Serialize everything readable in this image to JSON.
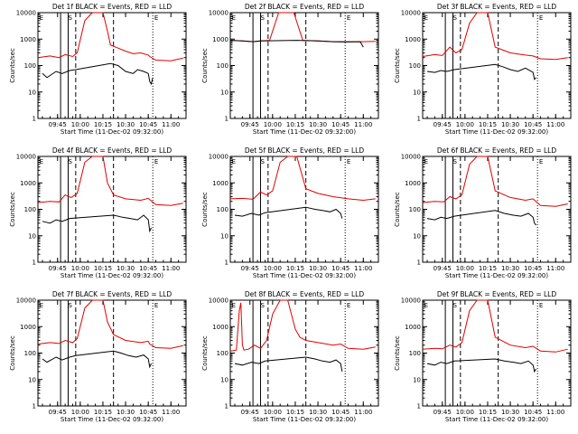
{
  "figure": {
    "x_tick_labels": [
      "09:45",
      "10:00",
      "10:15",
      "10:30",
      "10:45",
      "11:00"
    ],
    "y_tick_labels": [
      "1",
      "10",
      "100",
      "1000",
      "10000"
    ],
    "colors": {
      "events": "#000000",
      "lld": "#e00000",
      "frame": "#000000"
    }
  },
  "chart_data": [
    {
      "type": "line",
      "title": "Det 1f BLACK = Events, RED = LLD",
      "xlabel": "Start Time (11-Dec-02 09:32:00)",
      "ylabel": "Counts/sec",
      "scale": "log",
      "ylim": [
        1,
        10000
      ],
      "xlim": [
        "09:32",
        "11:10"
      ],
      "markers": [
        "E",
        "S",
        "E"
      ],
      "series": [
        {
          "name": "LLD",
          "x": [
            "09:32",
            "09:40",
            "09:46",
            "09:50",
            "09:55",
            "09:58",
            "10:03",
            "10:08",
            "10:15",
            "10:18",
            "10:20",
            "10:30",
            "10:35",
            "10:40",
            "10:45",
            "10:46",
            "10:50",
            "11:00",
            "11:08"
          ],
          "values": [
            200,
            230,
            200,
            260,
            220,
            300,
            5000,
            10000,
            10000,
            2000,
            600,
            350,
            280,
            300,
            250,
            220,
            160,
            150,
            190
          ]
        },
        {
          "name": "Events",
          "x": [
            "09:35",
            "09:38",
            "09:44",
            "09:48",
            "09:53",
            "09:57",
            "10:20",
            "10:25",
            "10:30",
            "10:35",
            "10:38",
            "10:42",
            "10:45",
            "10:46",
            "10:47",
            "10:48"
          ],
          "values": [
            50,
            35,
            60,
            50,
            65,
            70,
            120,
            100,
            60,
            50,
            70,
            60,
            50,
            25,
            20,
            35
          ]
        }
      ]
    },
    {
      "type": "line",
      "title": "Det 2f BLACK = Events, RED = LLD",
      "xlabel": "Start Time (11-Dec-02 09:32:00)",
      "ylabel": "Counts/sec",
      "scale": "log",
      "ylim": [
        1,
        10000
      ],
      "xlim": [
        "09:32",
        "11:10"
      ],
      "markers": [
        "E",
        "S",
        "E"
      ],
      "series": [
        {
          "name": "LLD",
          "x": [
            "09:32",
            "09:40",
            "09:47",
            "09:52",
            "09:58",
            "10:04",
            "10:14",
            "10:20",
            "10:30",
            "10:40",
            "10:50",
            "11:00",
            "11:08"
          ],
          "values": [
            900,
            850,
            800,
            850,
            900,
            10000,
            10000,
            900,
            850,
            800,
            800,
            800,
            820
          ]
        },
        {
          "name": "Events",
          "x": [
            "09:32",
            "09:40",
            "09:47",
            "09:52",
            "10:16",
            "10:30",
            "10:40",
            "10:50",
            "10:58",
            "11:00"
          ],
          "values": [
            900,
            850,
            800,
            850,
            900,
            850,
            800,
            780,
            800,
            500
          ]
        }
      ]
    },
    {
      "type": "line",
      "title": "Det 3f BLACK = Events, RED = LLD",
      "xlabel": "Start Time (11-Dec-02 09:32:00)",
      "ylabel": "Counts/sec",
      "scale": "log",
      "ylim": [
        1,
        10000
      ],
      "xlim": [
        "09:32",
        "11:10"
      ],
      "markers": [
        "E",
        "S",
        "E"
      ],
      "series": [
        {
          "name": "LLD",
          "x": [
            "09:32",
            "09:40",
            "09:45",
            "09:50",
            "09:54",
            "09:58",
            "10:03",
            "10:08",
            "10:15",
            "10:20",
            "10:30",
            "10:40",
            "10:45",
            "10:50",
            "11:00",
            "11:08"
          ],
          "values": [
            220,
            260,
            240,
            500,
            300,
            400,
            4000,
            10000,
            10000,
            500,
            300,
            250,
            230,
            180,
            170,
            200
          ]
        },
        {
          "name": "Events",
          "x": [
            "09:35",
            "09:40",
            "09:44",
            "09:48",
            "09:53",
            "10:20",
            "10:25",
            "10:30",
            "10:35",
            "10:40",
            "10:45",
            "10:46",
            "10:47"
          ],
          "values": [
            60,
            55,
            65,
            60,
            70,
            110,
            90,
            70,
            60,
            80,
            55,
            30,
            35
          ]
        }
      ]
    },
    {
      "type": "line",
      "title": "Det 4f BLACK = Events, RED = LLD",
      "xlabel": "Start Time (11-Dec-02 09:32:00)",
      "ylabel": "Counts/sec",
      "scale": "log",
      "ylim": [
        1,
        10000
      ],
      "xlim": [
        "09:32",
        "11:10"
      ],
      "markers": [
        "E",
        "S",
        "E"
      ],
      "series": [
        {
          "name": "LLD",
          "x": [
            "09:32",
            "09:40",
            "09:46",
            "09:50",
            "09:54",
            "09:58",
            "10:03",
            "10:08",
            "10:15",
            "10:18",
            "10:22",
            "10:30",
            "10:40",
            "10:45",
            "10:50",
            "11:00",
            "11:08"
          ],
          "values": [
            180,
            200,
            190,
            350,
            280,
            400,
            6000,
            10000,
            10000,
            1000,
            350,
            250,
            220,
            260,
            150,
            140,
            170
          ]
        },
        {
          "name": "Events",
          "x": [
            "09:35",
            "09:40",
            "09:44",
            "09:48",
            "09:53",
            "10:22",
            "10:28",
            "10:33",
            "10:38",
            "10:42",
            "10:45",
            "10:46",
            "10:47"
          ],
          "values": [
            35,
            30,
            40,
            35,
            45,
            60,
            50,
            45,
            40,
            60,
            40,
            15,
            20
          ]
        }
      ]
    },
    {
      "type": "line",
      "title": "Det 5f BLACK = Events, RED = LLD",
      "xlabel": "Start Time (11-Dec-02 09:32:00)",
      "ylabel": "Counts/sec",
      "scale": "log",
      "ylim": [
        1,
        10000
      ],
      "xlim": [
        "09:32",
        "11:10"
      ],
      "markers": [
        "E",
        "S",
        "E"
      ],
      "series": [
        {
          "name": "LLD",
          "x": [
            "09:32",
            "09:40",
            "09:47",
            "09:52",
            "09:56",
            "10:00",
            "10:05",
            "10:10",
            "10:16",
            "10:22",
            "10:30",
            "10:40",
            "10:50",
            "11:00",
            "11:08"
          ],
          "values": [
            250,
            260,
            240,
            450,
            350,
            500,
            6000,
            10000,
            10000,
            600,
            400,
            300,
            250,
            220,
            250
          ]
        },
        {
          "name": "Events",
          "x": [
            "09:35",
            "09:40",
            "09:46",
            "09:51",
            "09:55",
            "10:22",
            "10:28",
            "10:33",
            "10:38",
            "10:42",
            "10:45",
            "10:46"
          ],
          "values": [
            60,
            55,
            70,
            60,
            75,
            120,
            100,
            90,
            80,
            100,
            70,
            45
          ]
        }
      ]
    },
    {
      "type": "line",
      "title": "Det 6f BLACK = Events, RED = LLD",
      "xlabel": "Start Time (11-Dec-02 09:32:00)",
      "ylabel": "Counts/sec",
      "scale": "log",
      "ylim": [
        1,
        10000
      ],
      "xlim": [
        "09:32",
        "11:10"
      ],
      "markers": [
        "E",
        "S",
        "E"
      ],
      "series": [
        {
          "name": "LLD",
          "x": [
            "09:32",
            "09:40",
            "09:46",
            "09:50",
            "09:54",
            "09:58",
            "10:03",
            "10:08",
            "10:15",
            "10:20",
            "10:30",
            "10:40",
            "10:45",
            "10:50",
            "11:00",
            "11:08"
          ],
          "values": [
            180,
            200,
            190,
            300,
            250,
            350,
            5000,
            10000,
            10000,
            500,
            280,
            220,
            250,
            140,
            130,
            160
          ]
        },
        {
          "name": "Events",
          "x": [
            "09:35",
            "09:40",
            "09:44",
            "09:48",
            "09:53",
            "10:20",
            "10:26",
            "10:32",
            "10:37",
            "10:42",
            "10:45",
            "10:46",
            "10:47"
          ],
          "values": [
            45,
            40,
            50,
            45,
            55,
            90,
            70,
            60,
            55,
            70,
            50,
            30,
            25
          ]
        }
      ]
    },
    {
      "type": "line",
      "title": "Det 7f BLACK = Events, RED = LLD",
      "xlabel": "Start Time (11-Dec-02 09:32:00)",
      "ylabel": "Counts/sec",
      "scale": "log",
      "ylim": [
        1,
        10000
      ],
      "xlim": [
        "09:32",
        "11:10"
      ],
      "markers": [
        "E",
        "S",
        "E"
      ],
      "series": [
        {
          "name": "LLD",
          "x": [
            "09:32",
            "09:40",
            "09:46",
            "09:50",
            "09:55",
            "09:58",
            "10:03",
            "10:08",
            "10:15",
            "10:18",
            "10:22",
            "10:30",
            "10:40",
            "10:45",
            "10:46",
            "10:50",
            "11:00",
            "11:08"
          ],
          "values": [
            220,
            250,
            230,
            300,
            250,
            350,
            5000,
            10000,
            10000,
            1500,
            500,
            300,
            250,
            280,
            220,
            160,
            150,
            190
          ]
        },
        {
          "name": "Events",
          "x": [
            "09:35",
            "09:38",
            "09:44",
            "09:48",
            "09:53",
            "09:57",
            "10:22",
            "10:27",
            "10:32",
            "10:37",
            "10:42",
            "10:45",
            "10:46",
            "10:47"
          ],
          "values": [
            60,
            45,
            70,
            55,
            70,
            80,
            120,
            100,
            80,
            70,
            85,
            60,
            30,
            40
          ]
        }
      ]
    },
    {
      "type": "line",
      "title": "Det 8f BLACK = Events, RED = LLD",
      "xlabel": "Start Time (11-Dec-02 09:32:00)",
      "ylabel": "Counts/sec",
      "scale": "log",
      "ylim": [
        1,
        10000
      ],
      "xlim": [
        "09:32",
        "11:10"
      ],
      "markers": [
        "E",
        "S",
        "E"
      ],
      "series": [
        {
          "name": "LLD",
          "x": [
            "09:32",
            "09:36",
            "09:38",
            "09:39",
            "09:40",
            "09:41",
            "09:44",
            "09:48",
            "09:52",
            "09:56",
            "10:00",
            "10:05",
            "10:10",
            "10:15",
            "10:18",
            "10:22",
            "10:30",
            "10:40",
            "10:45",
            "10:50",
            "11:00",
            "11:08"
          ],
          "values": [
            120,
            130,
            4000,
            8000,
            200,
            130,
            140,
            200,
            150,
            300,
            3000,
            10000,
            10000,
            800,
            400,
            300,
            250,
            200,
            220,
            150,
            140,
            170
          ]
        },
        {
          "name": "Events",
          "x": [
            "09:35",
            "09:40",
            "09:46",
            "09:51",
            "09:55",
            "10:22",
            "10:28",
            "10:33",
            "10:38",
            "10:42",
            "10:45",
            "10:46"
          ],
          "values": [
            40,
            35,
            45,
            40,
            50,
            70,
            60,
            50,
            45,
            55,
            40,
            20
          ]
        }
      ]
    },
    {
      "type": "line",
      "title": "Det 9f BLACK = Events, RED = LLD",
      "xlabel": "Start Time (11-Dec-02 09:32:00)",
      "ylabel": "Counts/sec",
      "scale": "log",
      "ylim": [
        1,
        10000
      ],
      "xlim": [
        "09:32",
        "11:10"
      ],
      "markers": [
        "E",
        "S",
        "E"
      ],
      "series": [
        {
          "name": "LLD",
          "x": [
            "09:32",
            "09:40",
            "09:45",
            "09:50",
            "09:54",
            "09:58",
            "10:03",
            "10:08",
            "10:15",
            "10:20",
            "10:30",
            "10:40",
            "10:45",
            "10:50",
            "11:00",
            "11:08"
          ],
          "values": [
            140,
            150,
            145,
            200,
            170,
            250,
            4000,
            10000,
            10000,
            400,
            200,
            160,
            180,
            120,
            110,
            140
          ]
        },
        {
          "name": "Events",
          "x": [
            "09:35",
            "09:40",
            "09:44",
            "09:48",
            "09:53",
            "10:20",
            "10:26",
            "10:32",
            "10:37",
            "10:42",
            "10:45",
            "10:46",
            "10:47"
          ],
          "values": [
            40,
            35,
            45,
            40,
            50,
            60,
            50,
            45,
            40,
            50,
            35,
            20,
            25
          ]
        }
      ]
    }
  ]
}
